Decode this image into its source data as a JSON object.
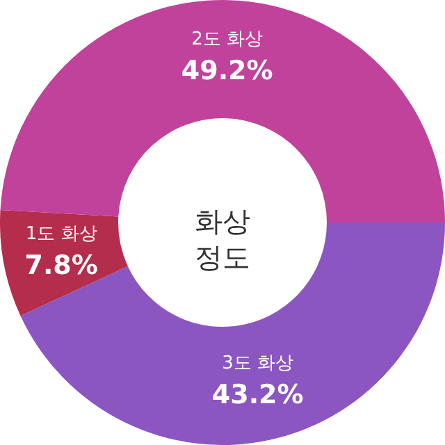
{
  "chart_data": {
    "type": "donut",
    "title": "화상 정도",
    "categories": [
      "3도 화상",
      "1도 화상",
      "2도 화상"
    ],
    "values": [
      43.2,
      7.8,
      49.2
    ],
    "colors": [
      "#8b56c2",
      "#b52d4c",
      "#c1429b"
    ],
    "value_labels": [
      "43.2%",
      "7.8%",
      "49.2%"
    ],
    "legend": false
  }
}
